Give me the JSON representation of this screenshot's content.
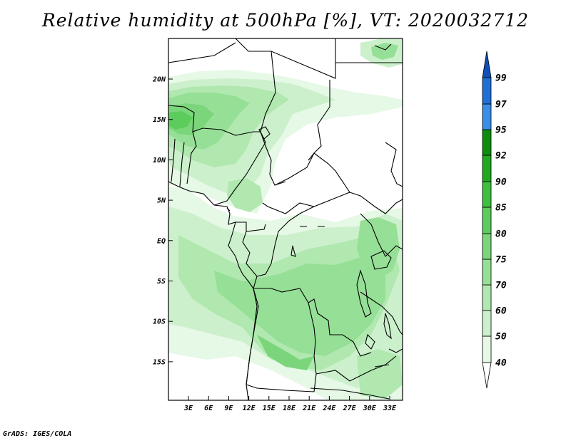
{
  "title": "Relative humidity at 500hPa [%], VT: 2020032712",
  "credit": "GrADS: IGES/COLA",
  "map": {
    "lat_labels": [
      "20N",
      "15N",
      "10N",
      "5N",
      "EQ",
      "5S",
      "10S",
      "15S"
    ],
    "lon_labels": [
      "3E",
      "6E",
      "9E",
      "12E",
      "15E",
      "18E",
      "21E",
      "24E",
      "27E",
      "30E",
      "33E"
    ]
  },
  "colorbar": {
    "levels": [
      "40",
      "50",
      "60",
      "70",
      "75",
      "80",
      "85",
      "90",
      "92",
      "95",
      "97",
      "99"
    ],
    "colors": [
      "#e6f8e6",
      "#ccf0cc",
      "#b0e8b0",
      "#96df96",
      "#7bd67b",
      "#5ccc5c",
      "#3ebf3e",
      "#20a820",
      "#0c8c0c",
      "#3a8ee8",
      "#1f6fd6",
      "#0f4fb8"
    ]
  },
  "humidity_colors": {
    "c40": "#e6f8e6",
    "c50": "#ccf0cc",
    "c60": "#b0e8b0",
    "c70": "#96df96",
    "c75": "#7bd67b",
    "c80": "#5ccc5c"
  }
}
